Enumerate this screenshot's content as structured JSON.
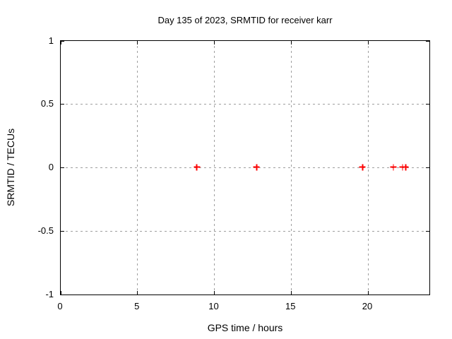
{
  "chart_data": {
    "type": "scatter",
    "title": "Day 135 of 2023, SRMTID for receiver karr",
    "xlabel": "GPS time / hours",
    "ylabel": "SRMTID / TECUs",
    "xlim": [
      0,
      24
    ],
    "ylim": [
      -1,
      1
    ],
    "xticks": [
      0,
      5,
      10,
      15,
      20
    ],
    "yticks": [
      1,
      0.5,
      0,
      -0.5,
      -1
    ],
    "grid": true,
    "legend": "none",
    "marker": "plus",
    "marker_color": "#ff0000",
    "grid_color": "#9e9e9e",
    "axis_color": "#000000",
    "background_color": "#ffffff",
    "series": [
      {
        "name": "SRMTID",
        "x": [
          8.9,
          12.8,
          19.7,
          21.7,
          22.3,
          22.5
        ],
        "y": [
          0,
          0,
          0,
          0,
          0,
          0
        ]
      }
    ]
  }
}
